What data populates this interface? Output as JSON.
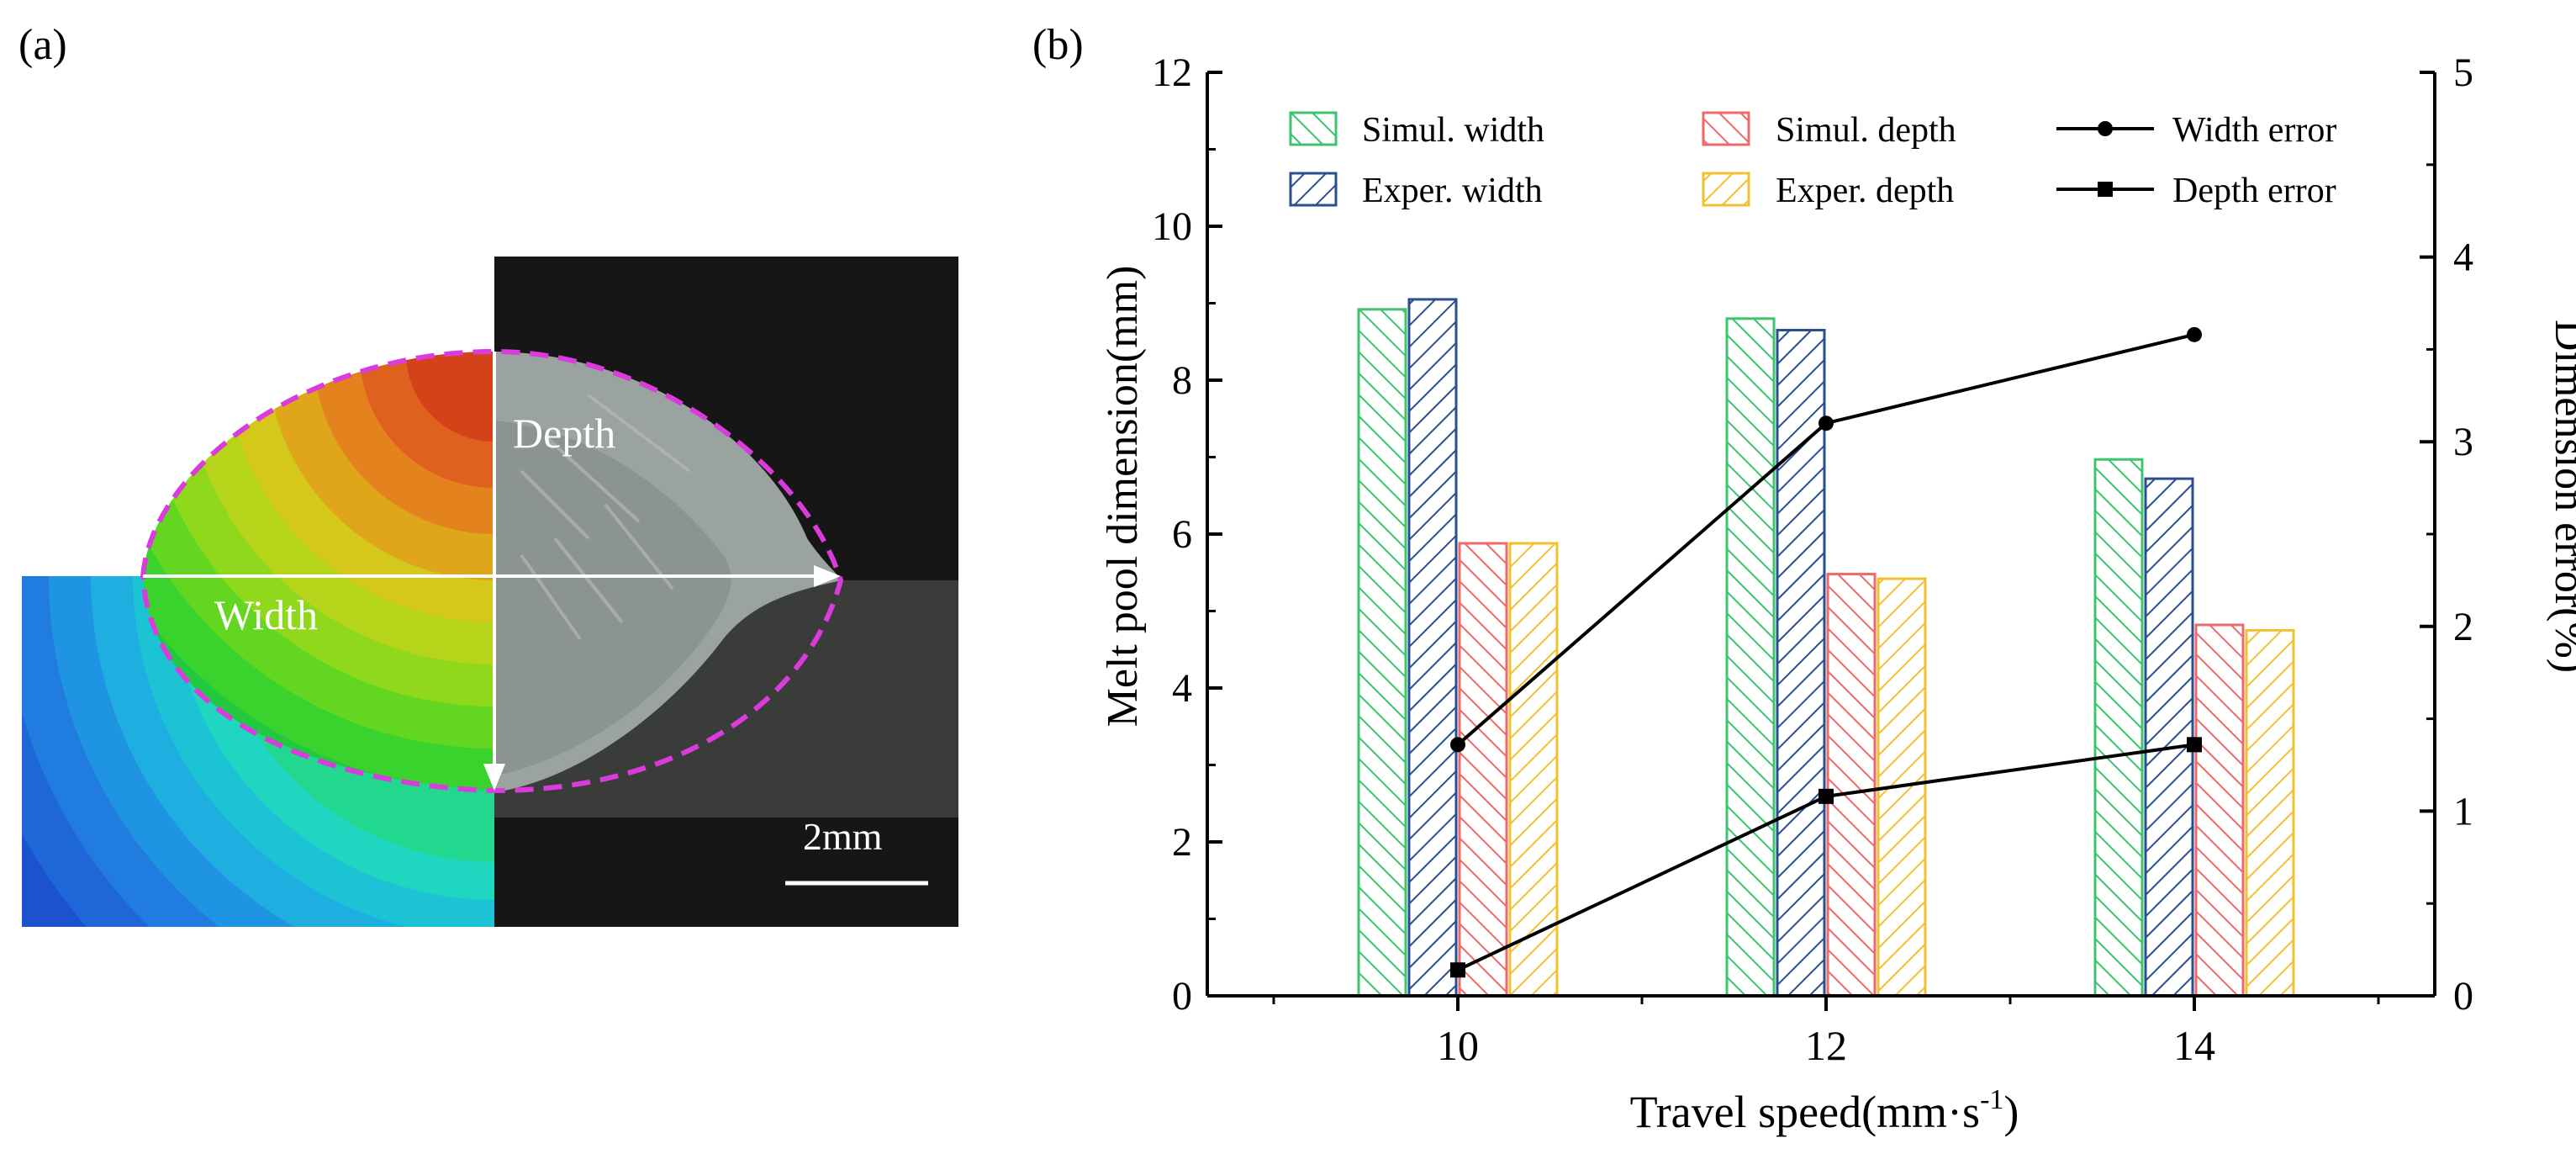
{
  "panel_a": {
    "label": "(a)",
    "depth_label": "Depth",
    "width_label": "Width",
    "scale_label": "2mm"
  },
  "panel_b": {
    "label": "(b)"
  },
  "chart_data": {
    "type": "bar",
    "categories": [
      "10",
      "12",
      "14"
    ],
    "xlabel": "Travel speed(mm·s",
    "xlabel_sup": "-1",
    "xlabel_tail": ")",
    "ylabel": "Melt pool dimension(mm)",
    "y2label": "Dimension error(%)",
    "ylim": [
      0,
      12
    ],
    "y2lim": [
      0,
      5
    ],
    "yticks": [
      "0",
      "2",
      "4",
      "6",
      "8",
      "10",
      "12"
    ],
    "y2ticks": [
      "0",
      "1",
      "2",
      "3",
      "4",
      "5"
    ],
    "legend_position": "top",
    "series": [
      {
        "name": "Simul. width",
        "values": [
          8.92,
          8.8,
          6.97
        ],
        "color": "#3cc46e",
        "hatch": "forward"
      },
      {
        "name": "Exper. width",
        "values": [
          9.05,
          8.65,
          6.72
        ],
        "color": "#2a4f8e",
        "hatch": "back"
      },
      {
        "name": "Simul. depth",
        "values": [
          5.88,
          5.48,
          4.82
        ],
        "color": "#ee6a6a",
        "hatch": "forward"
      },
      {
        "name": "Exper. depth",
        "values": [
          5.88,
          5.42,
          4.75
        ],
        "color": "#f2c131",
        "hatch": "back"
      }
    ],
    "lines": [
      {
        "name": "Width error",
        "marker": "circle",
        "axis": "right",
        "values": [
          1.36,
          3.1,
          3.58
        ]
      },
      {
        "name": "Depth error",
        "marker": "square",
        "axis": "right",
        "values": [
          0.14,
          1.08,
          1.36
        ]
      }
    ]
  }
}
